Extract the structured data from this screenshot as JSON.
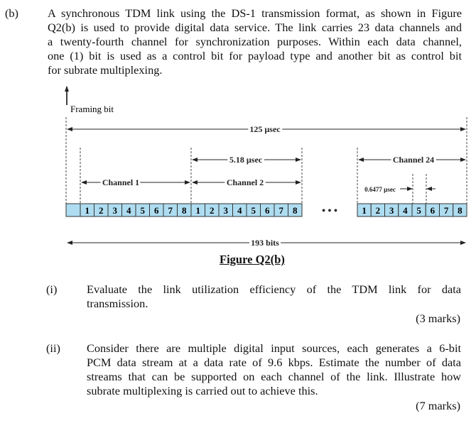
{
  "part_label": "(b)",
  "intro_lines": [
    "A synchronous TDM link using the DS-1 transmission format, as shown in Figure",
    "Q2(b) is used to provide digital data service. The link carries 23 data channels and",
    "a twenty-fourth channel for synchronization purposes. Within each data channel,",
    "one (1) bit is used as a control bit for payload type and another bit as control bit",
    "for subrate multiplexing."
  ],
  "figure": {
    "framing_bit_label": "Framing bit",
    "frame_time": "125 µsec",
    "channel_time": "5.18 µsec",
    "bit_time": "0.6477 µsec",
    "channel_labels": [
      "Channel 1",
      "Channel 2",
      "Channel 24"
    ],
    "bit_numbers": [
      "1",
      "2",
      "3",
      "4",
      "5",
      "6",
      "7",
      "8"
    ],
    "ellipsis": "• • •",
    "frame_bits": "193 bits",
    "caption": "Figure Q2(b)",
    "cell_color": "#aedcf0"
  },
  "questions": [
    {
      "label": "(i)",
      "lines": [
        "Evaluate the link utilization efficiency of the TDM link for data",
        "transmission."
      ],
      "marks": "(3 marks)"
    },
    {
      "label": "(ii)",
      "lines": [
        "Consider there are multiple digital input sources, each generates a 6-bit",
        "PCM data stream at a data rate of 9.6 kbps. Estimate the number of data",
        "streams that can be supported on each channel of the link. Illustrate how",
        "subrate multiplexing is carried out to achieve this."
      ],
      "marks": "(7 marks)"
    }
  ]
}
